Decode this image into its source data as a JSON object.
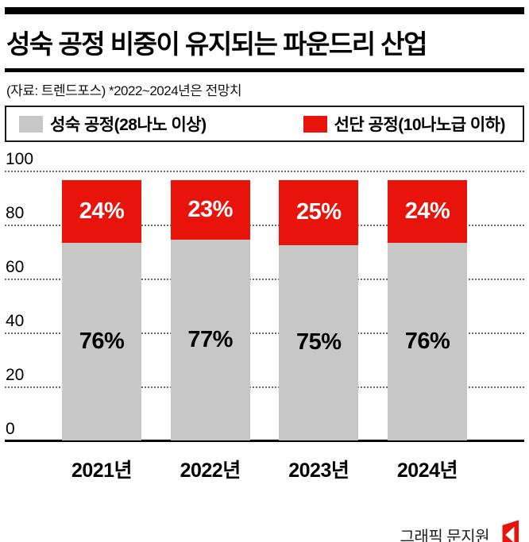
{
  "header": {
    "title": "성숙 공정 비중이 유지되는 파운드리 산업",
    "source_note": "(자료: 트렌드포스) *2022~2024년은 전망치"
  },
  "legend": {
    "items": [
      {
        "label": "성숙 공정(28나노 이상)",
        "color": "#c7c7c7"
      },
      {
        "label": "선단 공정(10나노급 이하)",
        "color": "#e8140c"
      }
    ]
  },
  "chart_data": {
    "type": "bar",
    "stacked": true,
    "title": "성숙 공정 비중이 유지되는 파운드리 산업",
    "categories": [
      "2021년",
      "2022년",
      "2023년",
      "2024년"
    ],
    "series": [
      {
        "name": "성숙 공정(28나노 이상)",
        "color": "#c7c7c7",
        "values": [
          76,
          77,
          75,
          76
        ],
        "labels": [
          "76%",
          "77%",
          "75%",
          "76%"
        ]
      },
      {
        "name": "선단 공정(10나노급 이하)",
        "color": "#e8140c",
        "values": [
          24,
          23,
          25,
          24
        ],
        "labels": [
          "24%",
          "23%",
          "25%",
          "24%"
        ]
      }
    ],
    "y_ticks": [
      0,
      20,
      40,
      60,
      80,
      100
    ],
    "ylim": [
      0,
      100
    ],
    "grid": "dotted horizontal, solid baseline",
    "legend_position": "top boxed"
  },
  "footer": {
    "credit": "그래픽 문지원",
    "logo": "red-flag-logo",
    "logo_color": "#e8140c"
  }
}
